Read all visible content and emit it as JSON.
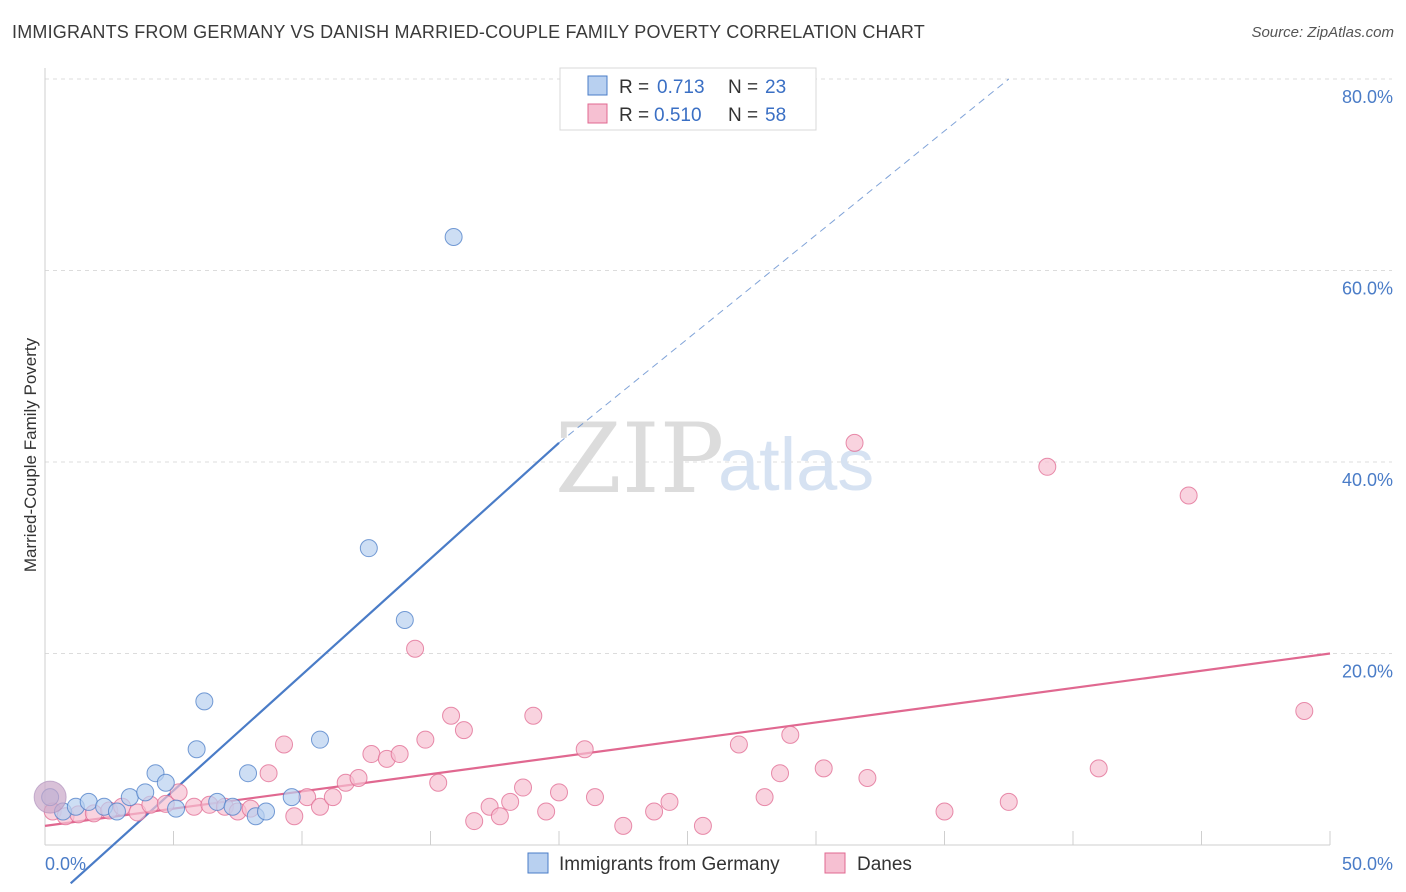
{
  "title": "IMMIGRANTS FROM GERMANY VS DANISH MARRIED-COUPLE FAMILY POVERTY CORRELATION CHART",
  "source": "Source: ZipAtlas.com",
  "watermark": {
    "part1": "ZIP",
    "part2": "atlas"
  },
  "colors": {
    "blue": "#4a7cc7",
    "blue_fill": "#b8d0f0",
    "pink": "#e06890",
    "pink_fill": "#f6c0d2",
    "grid": "#d8d8d8"
  },
  "legend": {
    "r_label": "R =",
    "n_label": "N =",
    "items": [
      {
        "r": "0.713",
        "n": "23"
      },
      {
        "r": "0.510",
        "n": "58"
      }
    ]
  },
  "bottom_legend": [
    "Immigrants from Germany",
    "Danes"
  ],
  "chart_data": {
    "type": "scatter",
    "ylabel": "Married-Couple Family Poverty",
    "xlim": [
      0,
      50
    ],
    "ylim": [
      0,
      80
    ],
    "x_ticks": [
      "0.0%",
      "50.0%"
    ],
    "y_ticks": [
      {
        "v": 20,
        "label": "20.0%"
      },
      {
        "v": 40,
        "label": "40.0%"
      },
      {
        "v": 60,
        "label": "60.0%"
      },
      {
        "v": 80,
        "label": "80.0%"
      }
    ],
    "series": [
      {
        "name": "Immigrants from Germany",
        "points": [
          [
            0.2,
            5.0
          ],
          [
            0.7,
            3.5
          ],
          [
            1.2,
            4.0
          ],
          [
            1.7,
            4.5
          ],
          [
            2.3,
            4.0
          ],
          [
            2.8,
            3.5
          ],
          [
            3.3,
            5.0
          ],
          [
            3.9,
            5.5
          ],
          [
            4.3,
            7.5
          ],
          [
            4.7,
            6.5
          ],
          [
            5.1,
            3.8
          ],
          [
            5.9,
            10.0
          ],
          [
            6.2,
            15.0
          ],
          [
            6.7,
            4.5
          ],
          [
            7.3,
            4.0
          ],
          [
            7.9,
            7.5
          ],
          [
            8.2,
            3.0
          ],
          [
            8.6,
            3.5
          ],
          [
            9.6,
            5.0
          ],
          [
            10.7,
            11.0
          ],
          [
            12.6,
            31.0
          ],
          [
            14.0,
            23.5
          ],
          [
            15.9,
            63.5
          ]
        ],
        "trend": {
          "x0": 1.0,
          "y0": -4.0,
          "x1": 20.0,
          "y1": 42.0
        },
        "trend_ext": {
          "x0": 20.0,
          "y0": 42.0,
          "x1": 37.5,
          "y1": 80.0
        }
      },
      {
        "name": "Danes",
        "points": [
          [
            0.3,
            3.5
          ],
          [
            0.8,
            3.0
          ],
          [
            1.3,
            3.2
          ],
          [
            1.9,
            3.3
          ],
          [
            2.5,
            3.6
          ],
          [
            3.0,
            4.0
          ],
          [
            3.6,
            3.4
          ],
          [
            4.1,
            4.2
          ],
          [
            4.7,
            4.3
          ],
          [
            5.2,
            5.5
          ],
          [
            5.8,
            4.0
          ],
          [
            6.4,
            4.2
          ],
          [
            7.0,
            4.0
          ],
          [
            7.5,
            3.5
          ],
          [
            8.0,
            3.8
          ],
          [
            8.7,
            7.5
          ],
          [
            9.3,
            10.5
          ],
          [
            9.7,
            3.0
          ],
          [
            10.2,
            5.0
          ],
          [
            10.7,
            4.0
          ],
          [
            11.2,
            5.0
          ],
          [
            11.7,
            6.5
          ],
          [
            12.2,
            7.0
          ],
          [
            12.7,
            9.5
          ],
          [
            13.3,
            9.0
          ],
          [
            13.8,
            9.5
          ],
          [
            14.4,
            20.5
          ],
          [
            14.8,
            11.0
          ],
          [
            15.3,
            6.5
          ],
          [
            15.8,
            13.5
          ],
          [
            16.3,
            12.0
          ],
          [
            16.7,
            2.5
          ],
          [
            17.3,
            4.0
          ],
          [
            17.7,
            3.0
          ],
          [
            18.1,
            4.5
          ],
          [
            18.6,
            6.0
          ],
          [
            19.0,
            13.5
          ],
          [
            19.5,
            3.5
          ],
          [
            20.0,
            5.5
          ],
          [
            21.0,
            10.0
          ],
          [
            21.4,
            5.0
          ],
          [
            22.5,
            2.0
          ],
          [
            23.7,
            3.5
          ],
          [
            24.3,
            4.5
          ],
          [
            25.6,
            2.0
          ],
          [
            27.0,
            10.5
          ],
          [
            28.0,
            5.0
          ],
          [
            28.6,
            7.5
          ],
          [
            29.0,
            11.5
          ],
          [
            30.3,
            8.0
          ],
          [
            31.5,
            42.0
          ],
          [
            32.0,
            7.0
          ],
          [
            35.0,
            3.5
          ],
          [
            37.5,
            4.5
          ],
          [
            39.0,
            39.5
          ],
          [
            41.0,
            8.0
          ],
          [
            44.5,
            36.5
          ],
          [
            49.0,
            14.0
          ]
        ],
        "trend": {
          "x0": 0.0,
          "y0": 2.0,
          "x1": 50.0,
          "y1": 20.0
        }
      }
    ]
  }
}
